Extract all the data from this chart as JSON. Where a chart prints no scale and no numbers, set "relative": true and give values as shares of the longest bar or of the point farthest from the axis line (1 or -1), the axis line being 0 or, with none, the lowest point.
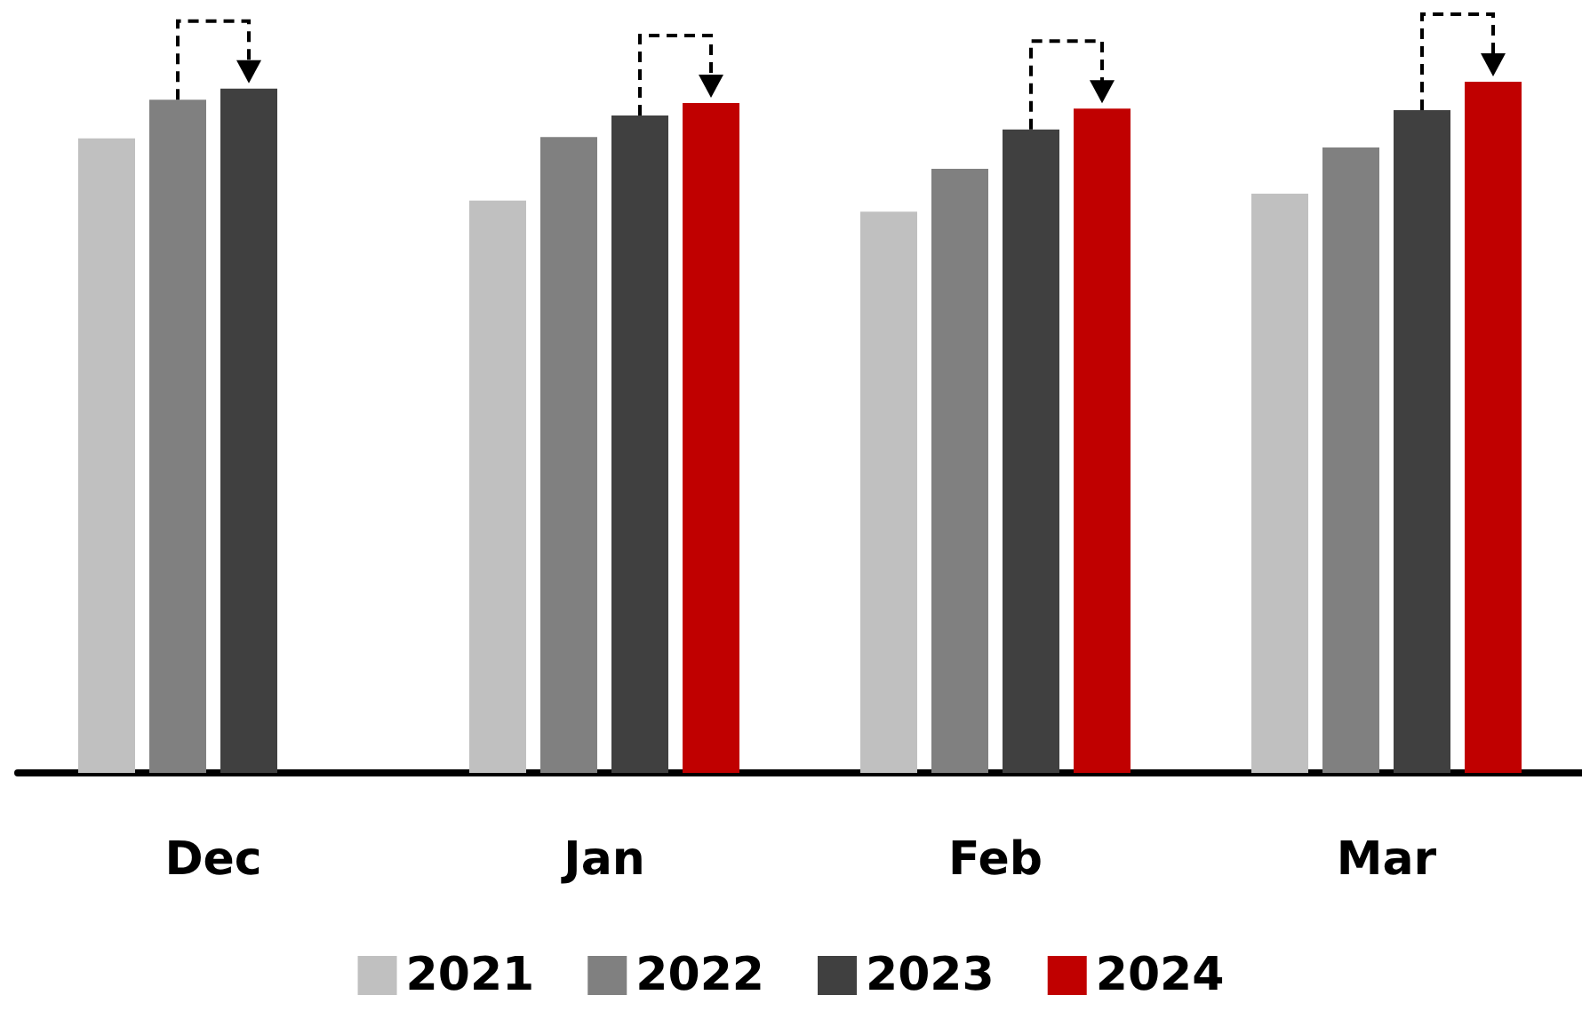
{
  "chart_data": {
    "type": "bar",
    "relative": true,
    "categories": [
      "Dec",
      "Jan",
      "Feb",
      "Mar"
    ],
    "legend": "bottom",
    "grid": false,
    "series": [
      {
        "name": "2021",
        "color": "#c0c0c0",
        "values": [
          0.918,
          0.828,
          0.812,
          0.838
        ]
      },
      {
        "name": "2022",
        "color": "#808080",
        "values": [
          0.974,
          0.92,
          0.874,
          0.905
        ]
      },
      {
        "name": "2023",
        "color": "#404040",
        "values": [
          0.99,
          0.951,
          0.931,
          0.959
        ]
      },
      {
        "name": "2024",
        "color": "#c00000",
        "values": [
          null,
          0.969,
          0.961,
          1
        ]
      }
    ]
  }
}
